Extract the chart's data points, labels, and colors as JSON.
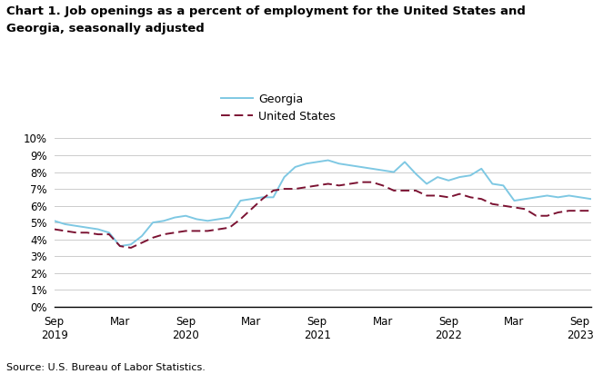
{
  "title_line1": "Chart 1. Job openings as a percent of employment for the United States and",
  "title_line2": "Georgia, seasonally adjusted",
  "source": "Source: U.S. Bureau of Labor Statistics.",
  "georgia_color": "#7EC8E3",
  "us_color": "#7B1232",
  "georgia_label": "Georgia",
  "us_label": "United States",
  "ylim": [
    0,
    10
  ],
  "yticks": [
    0,
    1,
    2,
    3,
    4,
    5,
    6,
    7,
    8,
    9,
    10
  ],
  "georgia_data": [
    5.1,
    4.9,
    4.8,
    4.7,
    4.6,
    4.4,
    3.6,
    3.7,
    4.2,
    5.0,
    5.1,
    5.3,
    5.4,
    5.2,
    5.1,
    5.2,
    5.3,
    6.3,
    6.4,
    6.5,
    6.5,
    7.7,
    8.3,
    8.5,
    8.6,
    8.7,
    8.5,
    8.4,
    8.3,
    8.2,
    8.1,
    8.0,
    8.6,
    7.9,
    7.3,
    7.7,
    7.5,
    7.7,
    7.8,
    8.2,
    7.3,
    7.2,
    6.3,
    6.4,
    6.5,
    6.6,
    6.5,
    6.6,
    6.5,
    6.4
  ],
  "us_data": [
    4.6,
    4.5,
    4.4,
    4.4,
    4.3,
    4.3,
    3.6,
    3.5,
    3.8,
    4.1,
    4.3,
    4.4,
    4.5,
    4.5,
    4.5,
    4.6,
    4.7,
    5.2,
    5.8,
    6.4,
    6.9,
    7.0,
    7.0,
    7.1,
    7.2,
    7.3,
    7.2,
    7.3,
    7.4,
    7.4,
    7.2,
    6.9,
    6.9,
    6.9,
    6.6,
    6.6,
    6.5,
    6.7,
    6.5,
    6.4,
    6.1,
    6.0,
    5.9,
    5.8,
    5.4,
    5.4,
    5.6,
    5.7,
    5.7,
    5.7
  ],
  "x_tick_positions": [
    0,
    6,
    12,
    18,
    24,
    30,
    36,
    42,
    48
  ],
  "x_tick_labels_top": [
    "Sep",
    "Mar",
    "Sep",
    "Mar",
    "Sep",
    "Mar",
    "Sep",
    "Mar",
    "Sep"
  ],
  "x_tick_labels_bot": [
    "2019",
    "",
    "2020",
    "",
    "2021",
    "",
    "2022",
    "",
    "2023"
  ]
}
